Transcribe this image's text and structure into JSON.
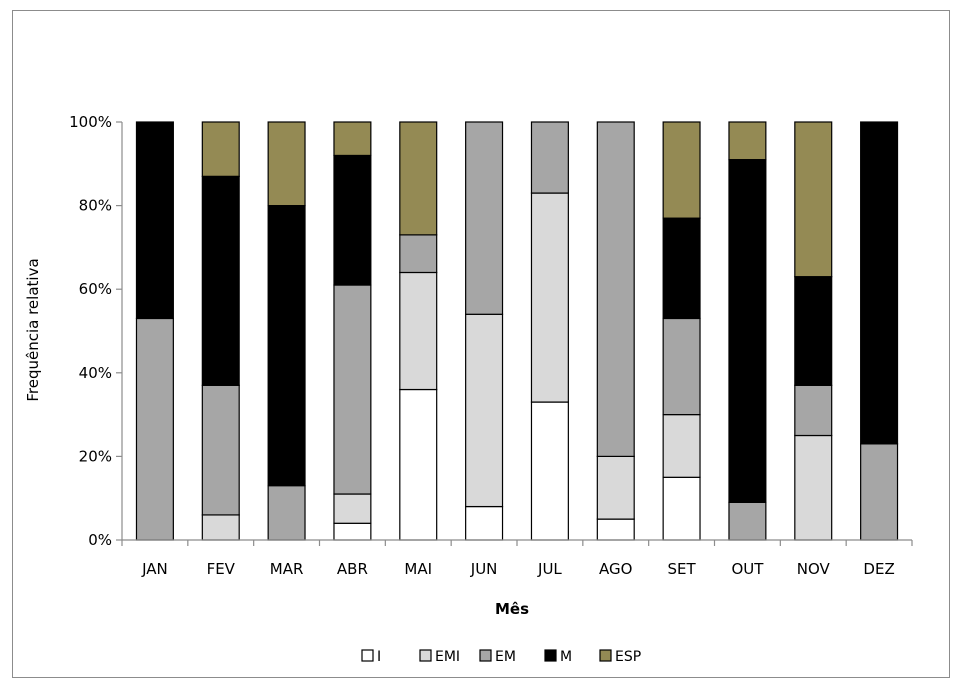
{
  "chart_data": {
    "type": "bar",
    "stacked": true,
    "percent": true,
    "title": "",
    "xlabel": "Mês",
    "ylabel": "Frequência relativa",
    "ylim": [
      0,
      100
    ],
    "yticks": [
      "0%",
      "20%",
      "40%",
      "60%",
      "80%",
      "100%"
    ],
    "grid": false,
    "legend_position": "bottom",
    "categories": [
      "JAN",
      "FEV",
      "MAR",
      "ABR",
      "MAI",
      "JUN",
      "JUL",
      "AGO",
      "SET",
      "OUT",
      "NOV",
      "DEZ"
    ],
    "series": [
      {
        "name": "I",
        "color": "#ffffff",
        "values": [
          0,
          0,
          0,
          4,
          36,
          8,
          33,
          5,
          15,
          0,
          0,
          0
        ]
      },
      {
        "name": "EMI",
        "color": "#d9d9d9",
        "values": [
          0,
          6,
          0,
          7,
          28,
          46,
          50,
          15,
          15,
          0,
          25,
          0
        ]
      },
      {
        "name": "EM",
        "color": "#a6a6a6",
        "values": [
          53,
          31,
          13,
          50,
          9,
          46,
          17,
          80,
          23,
          9,
          12,
          23
        ]
      },
      {
        "name": "M",
        "color": "#000000",
        "values": [
          47,
          50,
          67,
          31,
          0,
          0,
          0,
          0,
          24,
          82,
          26,
          77
        ]
      },
      {
        "name": "ESP",
        "color": "#948a54",
        "values": [
          0,
          13,
          20,
          8,
          27,
          0,
          0,
          0,
          23,
          9,
          37,
          0
        ]
      }
    ]
  }
}
